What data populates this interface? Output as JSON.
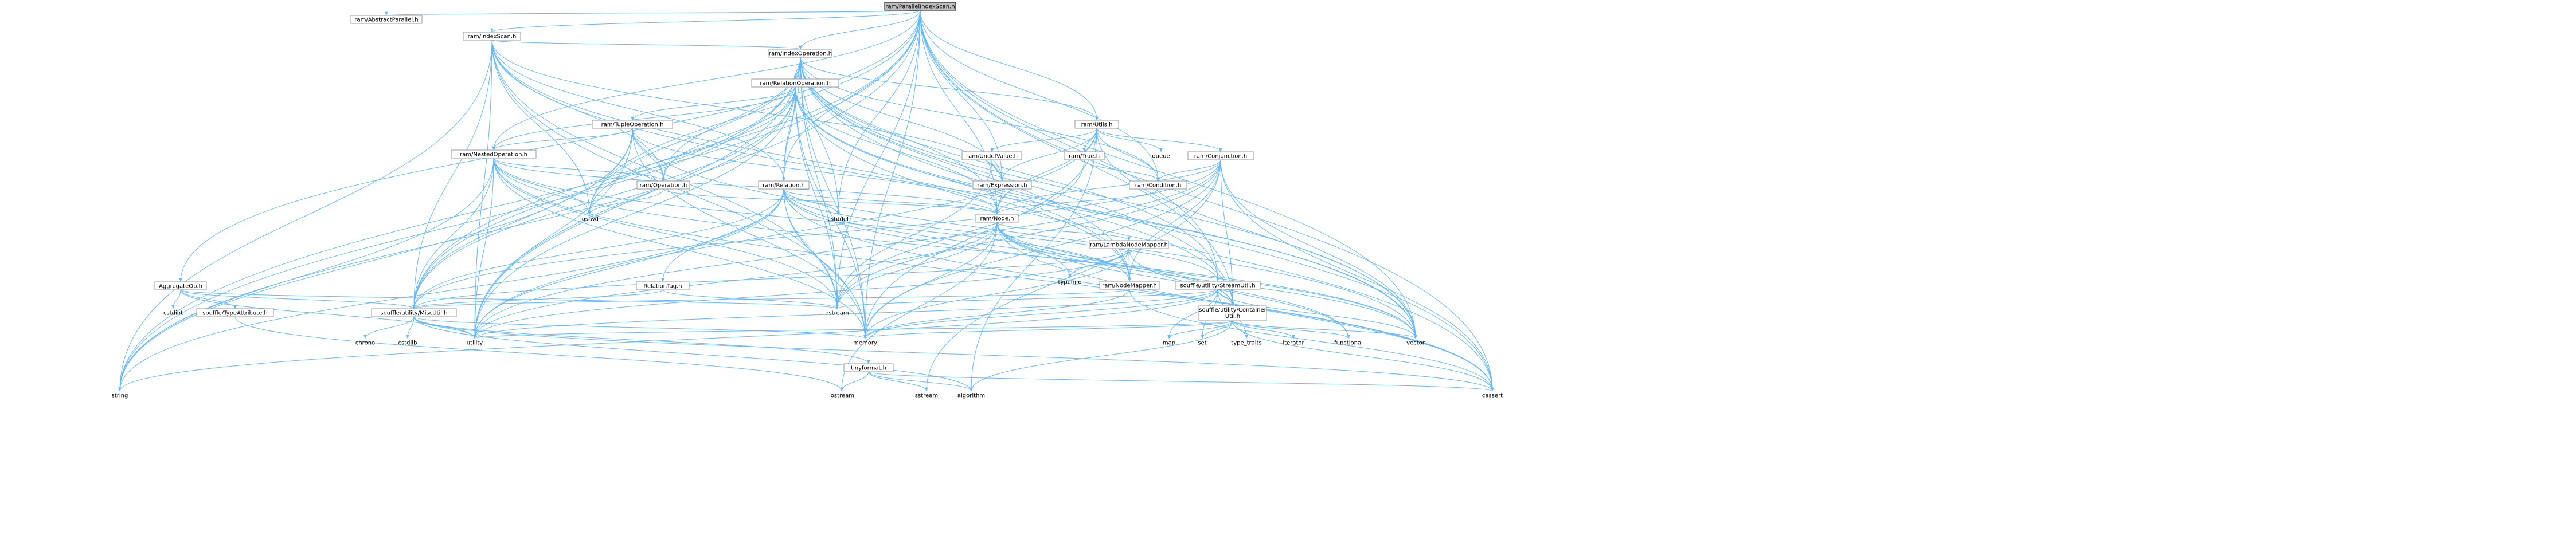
{
  "nodes": [
    {
      "id": "root",
      "label": "ram/ParallelIndexScan.h",
      "root": true
    },
    {
      "id": "abstractparallel",
      "label": "ram/AbstractParallel.h"
    },
    {
      "id": "indexscan",
      "label": "ram/IndexScan.h"
    },
    {
      "id": "indexoperation",
      "label": "ram/IndexOperation.h"
    },
    {
      "id": "relationoperation",
      "label": "ram/RelationOperation.h"
    },
    {
      "id": "tupleoperation",
      "label": "ram/TupleOperation.h"
    },
    {
      "id": "nestedoperation",
      "label": "ram/NestedOperation.h"
    },
    {
      "id": "utils",
      "label": "ram/Utils.h"
    },
    {
      "id": "undefvalue",
      "label": "ram/UndefValue.h"
    },
    {
      "id": "true",
      "label": "ram/True.h"
    },
    {
      "id": "queue",
      "label": "queue",
      "external": true
    },
    {
      "id": "conjunction",
      "label": "ram/Conjunction.h"
    },
    {
      "id": "operation",
      "label": "ram/Operation.h"
    },
    {
      "id": "relation",
      "label": "ram/Relation.h"
    },
    {
      "id": "expression",
      "label": "ram/Expression.h"
    },
    {
      "id": "condition",
      "label": "ram/Condition.h"
    },
    {
      "id": "node",
      "label": "ram/Node.h"
    },
    {
      "id": "iosfwd",
      "label": "iosfwd",
      "external": true
    },
    {
      "id": "cstddef",
      "label": "cstddef",
      "external": true
    },
    {
      "id": "lambdanodemapper",
      "label": "ram/LambdaNodeMapper.h"
    },
    {
      "id": "typeinfo",
      "label": "typeinfo",
      "external": true
    },
    {
      "id": "nodemapper",
      "label": "ram/NodeMapper.h"
    },
    {
      "id": "streamutil",
      "label": "souffle/utility/StreamUtil.h"
    },
    {
      "id": "relationtag",
      "label": "RelationTag.h"
    },
    {
      "id": "aggregateop",
      "label": "AggregateOp.h"
    },
    {
      "id": "cstdint",
      "label": "cstdint",
      "external": true
    },
    {
      "id": "typeattribute",
      "label": "souffle/TypeAttribute.h"
    },
    {
      "id": "miscutil",
      "label": "souffle/utility/MiscUtil.h"
    },
    {
      "id": "ostream",
      "label": "ostream",
      "external": true
    },
    {
      "id": "containerutil",
      "label": "souffle/utility/Container\nUtil.h"
    },
    {
      "id": "chrono",
      "label": "chrono",
      "external": true
    },
    {
      "id": "cstdlib",
      "label": "cstdlib",
      "external": true
    },
    {
      "id": "utility",
      "label": "utility",
      "external": true
    },
    {
      "id": "memory",
      "label": "memory",
      "external": true
    },
    {
      "id": "tinyformat",
      "label": "tinyformat.h"
    },
    {
      "id": "map",
      "label": "map",
      "external": true
    },
    {
      "id": "set",
      "label": "set",
      "external": true
    },
    {
      "id": "typetraits",
      "label": "type_traits",
      "external": true
    },
    {
      "id": "iterator",
      "label": "iterator",
      "external": true
    },
    {
      "id": "functional",
      "label": "functional",
      "external": true
    },
    {
      "id": "vector",
      "label": "vector",
      "external": true
    },
    {
      "id": "string",
      "label": "string",
      "external": true
    },
    {
      "id": "iostream",
      "label": "iostream",
      "external": true
    },
    {
      "id": "sstream",
      "label": "sstream",
      "external": true
    },
    {
      "id": "algorithm",
      "label": "algorithm",
      "external": true
    },
    {
      "id": "cassert",
      "label": "cassert",
      "external": true
    }
  ],
  "edges": [
    [
      "root",
      "abstractparallel"
    ],
    [
      "root",
      "indexscan"
    ],
    [
      "root",
      "indexoperation"
    ],
    [
      "root",
      "relation"
    ],
    [
      "root",
      "utils"
    ],
    [
      "root",
      "nestedoperation"
    ],
    [
      "root",
      "aggregateop"
    ],
    [
      "root",
      "miscutil"
    ],
    [
      "root",
      "iosfwd"
    ],
    [
      "root",
      "cstddef"
    ],
    [
      "root",
      "string"
    ],
    [
      "root",
      "vector"
    ],
    [
      "root",
      "cassert"
    ],
    [
      "root",
      "memory"
    ],
    [
      "root",
      "ostream"
    ],
    [
      "root",
      "utility"
    ],
    [
      "root",
      "expression"
    ],
    [
      "root",
      "condition"
    ],
    [
      "root",
      "node"
    ],
    [
      "root",
      "streamutil"
    ],
    [
      "root",
      "containerutil"
    ],
    [
      "indexscan",
      "indexoperation"
    ],
    [
      "indexscan",
      "relation"
    ],
    [
      "indexscan",
      "operation"
    ],
    [
      "indexscan",
      "expression"
    ],
    [
      "indexscan",
      "miscutil"
    ],
    [
      "indexscan",
      "iosfwd"
    ],
    [
      "indexscan",
      "memory"
    ],
    [
      "indexscan",
      "ostream"
    ],
    [
      "indexscan",
      "string"
    ],
    [
      "indexscan",
      "utility"
    ],
    [
      "indexscan",
      "vector"
    ],
    [
      "indexscan",
      "nodemapper"
    ],
    [
      "indexoperation",
      "relationoperation"
    ],
    [
      "indexoperation",
      "utils"
    ],
    [
      "indexoperation",
      "expression"
    ],
    [
      "indexoperation",
      "condition"
    ],
    [
      "indexoperation",
      "node"
    ],
    [
      "indexoperation",
      "nodemapper"
    ],
    [
      "indexoperation",
      "operation"
    ],
    [
      "indexoperation",
      "relation"
    ],
    [
      "indexoperation",
      "containerutil"
    ],
    [
      "indexoperation",
      "miscutil"
    ],
    [
      "indexoperation",
      "streamutil"
    ],
    [
      "indexoperation",
      "cstddef"
    ],
    [
      "indexoperation",
      "iosfwd"
    ],
    [
      "indexoperation",
      "memory"
    ],
    [
      "indexoperation",
      "ostream"
    ],
    [
      "indexoperation",
      "string"
    ],
    [
      "indexoperation",
      "utility"
    ],
    [
      "indexoperation",
      "vector"
    ],
    [
      "indexoperation",
      "cassert"
    ],
    [
      "relationoperation",
      "tupleoperation"
    ],
    [
      "relationoperation",
      "nestedoperation"
    ],
    [
      "relationoperation",
      "relation"
    ],
    [
      "relationoperation",
      "operation"
    ],
    [
      "relationoperation",
      "node"
    ],
    [
      "relationoperation",
      "nodemapper"
    ],
    [
      "relationoperation",
      "containerutil"
    ],
    [
      "relationoperation",
      "miscutil"
    ],
    [
      "relationoperation",
      "cassert"
    ],
    [
      "relationoperation",
      "memory"
    ],
    [
      "relationoperation",
      "ostream"
    ],
    [
      "relationoperation",
      "string"
    ],
    [
      "relationoperation",
      "utility"
    ],
    [
      "relationoperation",
      "vector"
    ],
    [
      "relationoperation",
      "iosfwd"
    ],
    [
      "tupleoperation",
      "nestedoperation"
    ],
    [
      "tupleoperation",
      "operation"
    ],
    [
      "tupleoperation",
      "node"
    ],
    [
      "tupleoperation",
      "miscutil"
    ],
    [
      "tupleoperation",
      "memory"
    ],
    [
      "tupleoperation",
      "utility"
    ],
    [
      "tupleoperation",
      "vector"
    ],
    [
      "tupleoperation",
      "string"
    ],
    [
      "nestedoperation",
      "operation"
    ],
    [
      "nestedoperation",
      "node"
    ],
    [
      "nestedoperation",
      "nodemapper"
    ],
    [
      "nestedoperation",
      "miscutil"
    ],
    [
      "nestedoperation",
      "cassert"
    ],
    [
      "nestedoperation",
      "iosfwd"
    ],
    [
      "nestedoperation",
      "memory"
    ],
    [
      "nestedoperation",
      "ostream"
    ],
    [
      "nestedoperation",
      "string"
    ],
    [
      "nestedoperation",
      "utility"
    ],
    [
      "nestedoperation",
      "vector"
    ],
    [
      "utils",
      "undefvalue"
    ],
    [
      "utils",
      "true"
    ],
    [
      "utils",
      "queue"
    ],
    [
      "utils",
      "conjunction"
    ],
    [
      "utils",
      "condition"
    ],
    [
      "utils",
      "expression"
    ],
    [
      "utils",
      "node"
    ],
    [
      "utils",
      "memory"
    ],
    [
      "utils",
      "utility"
    ],
    [
      "utils",
      "vector"
    ],
    [
      "utils",
      "algorithm"
    ],
    [
      "undefvalue",
      "expression"
    ],
    [
      "undefvalue",
      "ostream"
    ],
    [
      "true",
      "condition"
    ],
    [
      "true",
      "ostream"
    ],
    [
      "conjunction",
      "condition"
    ],
    [
      "conjunction",
      "node"
    ],
    [
      "conjunction",
      "nodemapper"
    ],
    [
      "conjunction",
      "containerutil"
    ],
    [
      "conjunction",
      "miscutil"
    ],
    [
      "conjunction",
      "cassert"
    ],
    [
      "conjunction",
      "memory"
    ],
    [
      "conjunction",
      "ostream"
    ],
    [
      "conjunction",
      "sstream"
    ],
    [
      "conjunction",
      "utility"
    ],
    [
      "conjunction",
      "vector"
    ],
    [
      "operation",
      "node"
    ],
    [
      "operation",
      "iosfwd"
    ],
    [
      "relation",
      "node"
    ],
    [
      "relation",
      "relationtag"
    ],
    [
      "relation",
      "containerutil"
    ],
    [
      "relation",
      "miscutil"
    ],
    [
      "relation",
      "streamutil"
    ],
    [
      "relation",
      "cassert"
    ],
    [
      "relation",
      "cstddef"
    ],
    [
      "relation",
      "memory"
    ],
    [
      "relation",
      "ostream"
    ],
    [
      "relation",
      "string"
    ],
    [
      "relation",
      "utility"
    ],
    [
      "relation",
      "vector"
    ],
    [
      "expression",
      "node"
    ],
    [
      "condition",
      "node"
    ],
    [
      "node",
      "lambdanodemapper"
    ],
    [
      "node",
      "nodemapper"
    ],
    [
      "node",
      "containerutil"
    ],
    [
      "node",
      "typeinfo"
    ],
    [
      "node",
      "functional"
    ],
    [
      "node",
      "iostream"
    ],
    [
      "node",
      "memory"
    ],
    [
      "node",
      "ostream"
    ],
    [
      "node",
      "utility"
    ],
    [
      "node",
      "vector"
    ],
    [
      "node",
      "cassert"
    ],
    [
      "lambdanodemapper",
      "nodemapper"
    ],
    [
      "lambdanodemapper",
      "miscutil"
    ],
    [
      "lambdanodemapper",
      "functional"
    ],
    [
      "lambdanodemapper",
      "memory"
    ],
    [
      "lambdanodemapper",
      "utility"
    ],
    [
      "lambdanodemapper",
      "typeinfo"
    ],
    [
      "nodemapper",
      "miscutil"
    ],
    [
      "nodemapper",
      "memory"
    ],
    [
      "nodemapper",
      "cassert"
    ],
    [
      "streamutil",
      "containerutil"
    ],
    [
      "streamutil",
      "map"
    ],
    [
      "streamutil",
      "memory"
    ],
    [
      "streamutil",
      "ostream"
    ],
    [
      "streamutil",
      "set"
    ],
    [
      "streamutil",
      "string"
    ],
    [
      "streamutil",
      "typetraits"
    ],
    [
      "streamutil",
      "utility"
    ],
    [
      "streamutil",
      "vector"
    ],
    [
      "relationtag",
      "miscutil"
    ],
    [
      "relationtag",
      "ostream"
    ],
    [
      "aggregateop",
      "typeattribute"
    ],
    [
      "aggregateop",
      "miscutil"
    ],
    [
      "aggregateop",
      "cstdint"
    ],
    [
      "aggregateop",
      "ostream"
    ],
    [
      "aggregateop",
      "utility"
    ],
    [
      "typeattribute",
      "iostream"
    ],
    [
      "miscutil",
      "tinyformat"
    ],
    [
      "miscutil",
      "chrono"
    ],
    [
      "miscutil",
      "cstdlib"
    ],
    [
      "miscutil",
      "utility"
    ],
    [
      "miscutil",
      "memory"
    ],
    [
      "miscutil",
      "algorithm"
    ],
    [
      "miscutil",
      "cassert"
    ],
    [
      "containerutil",
      "memory"
    ],
    [
      "containerutil",
      "utility"
    ],
    [
      "containerutil",
      "vector"
    ],
    [
      "containerutil",
      "map"
    ],
    [
      "containerutil",
      "set"
    ],
    [
      "containerutil",
      "typetraits"
    ],
    [
      "containerutil",
      "iterator"
    ],
    [
      "containerutil",
      "functional"
    ],
    [
      "containerutil",
      "cassert"
    ],
    [
      "containerutil",
      "algorithm"
    ],
    [
      "tinyformat",
      "algorithm"
    ],
    [
      "tinyformat",
      "cassert"
    ],
    [
      "tinyformat",
      "iostream"
    ],
    [
      "tinyformat",
      "sstream"
    ]
  ]
}
